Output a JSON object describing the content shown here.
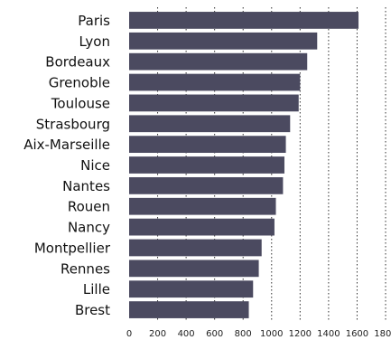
{
  "chart_data": {
    "type": "bar",
    "orientation": "horizontal",
    "categories": [
      "Paris",
      "Lyon",
      "Bordeaux",
      "Grenoble",
      "Toulouse",
      "Strasbourg",
      "Aix-Marseille",
      "Nice",
      "Nantes",
      "Rouen",
      "Nancy",
      "Montpellier",
      "Rennes",
      "Lille",
      "Brest"
    ],
    "values": [
      1610,
      1320,
      1250,
      1200,
      1190,
      1130,
      1100,
      1090,
      1080,
      1030,
      1020,
      930,
      910,
      870,
      840
    ],
    "xticks": [
      "0",
      "200",
      "400",
      "600",
      "800",
      "1000",
      "1200",
      "1400",
      "1600",
      "1800"
    ],
    "xlim": [
      0,
      1800
    ],
    "grid": "vertical dotted lines",
    "bar_color": "#4b4a60",
    "title": "",
    "xlabel": "",
    "ylabel": ""
  }
}
